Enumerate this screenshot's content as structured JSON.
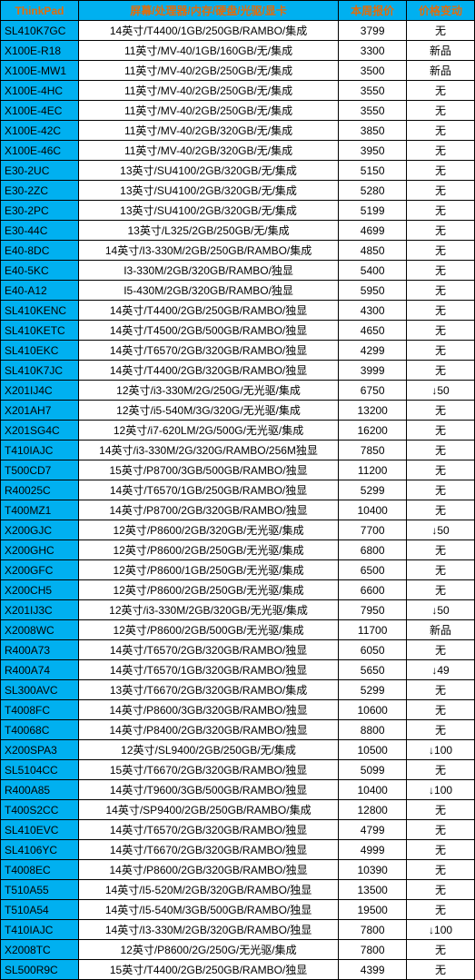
{
  "table": {
    "header_bg": "#00b0f0",
    "header_fg": "#e46c0a",
    "model_bg": "#00b0f0",
    "border_color": "#000000",
    "columns": [
      "ThinkPad",
      "屏幕/处理器/内存/硬盘/光驱/显卡",
      "本周报价",
      "价格变动"
    ],
    "rows": [
      [
        "SL410K7GC",
        "14英寸/T4400/1GB/250GB/RAMBO/集成",
        "3799",
        "无"
      ],
      [
        "X100E-R18",
        "11英寸/MV-40/1GB/160GB/无/集成",
        "3300",
        "新品"
      ],
      [
        "X100E-MW1",
        "11英寸/MV-40/2GB/250GB/无/集成",
        "3500",
        "新品"
      ],
      [
        "X100E-4HC",
        "11英寸/MV-40/2GB/250GB/无/集成",
        "3550",
        "无"
      ],
      [
        "X100E-4EC",
        "11英寸/MV-40/2GB/250GB/无/集成",
        "3550",
        "无"
      ],
      [
        "X100E-42C",
        "11英寸/MV-40/2GB/320GB/无/集成",
        "3850",
        "无"
      ],
      [
        "X100E-46C",
        "11英寸/MV-40/2GB/320GB/无/集成",
        "3950",
        "无"
      ],
      [
        "E30-2UC",
        "13英寸/SU4100/2GB/320GB/无/集成",
        "5150",
        "无"
      ],
      [
        "E30-2ZC",
        "13英寸/SU4100/2GB/320GB/无/集成",
        "5280",
        "无"
      ],
      [
        "E30-2PC",
        "13英寸/SU4100/2GB/320GB/无/集成",
        "5199",
        "无"
      ],
      [
        "E30-44C",
        "13英寸/L325/2GB/250GB/无/集成",
        "4699",
        "无"
      ],
      [
        "E40-8DC",
        "14英寸/I3-330M/2GB/250GB/RAMBO/集成",
        "4850",
        "无"
      ],
      [
        "E40-5KC",
        "I3-330M/2GB/320GB/RAMBO/独显",
        "5400",
        "无"
      ],
      [
        "E40-A12",
        "I5-430M/2GB/320GB/RAMBO/独显",
        "5950",
        "无"
      ],
      [
        "SL410KENC",
        "14英寸/T4400/2GB/250GB/RAMBO/独显",
        "4300",
        "无"
      ],
      [
        "SL410KETC",
        "14英寸/T4500/2GB/500GB/RAMBO/独显",
        "4650",
        "无"
      ],
      [
        "SL410EKC",
        "14英寸/T6570/2GB/320GB/RAMBO/独显",
        "4299",
        "无"
      ],
      [
        "SL410K7JC",
        "14英寸/T4400/2GB/320GB/RAMBO/独显",
        "3999",
        "无"
      ],
      [
        "X201IJ4C",
        "12英寸/i3-330M/2G/250G/无光驱/集成",
        "6750",
        "↓50"
      ],
      [
        "X201AH7",
        "12英寸/i5-540M/3G/320G/无光驱/集成",
        "13200",
        "无"
      ],
      [
        "X201SG4C",
        "12英寸/i7-620LM/2G/500G/无光驱/集成",
        "16200",
        "无"
      ],
      [
        "T410IAJC",
        "14英寸/i3-330M/2G/320G/RAMBO/256M独显",
        "7850",
        "无"
      ],
      [
        "T500CD7",
        "15英寸/P8700/3GB/500GB/RAMBO/独显",
        "11200",
        "无"
      ],
      [
        "R40025C",
        "14英寸/T6570/1GB/250GB/RAMBO/独显",
        "5299",
        "无"
      ],
      [
        "T400MZ1",
        "14英寸/P8700/2GB/320GB/RAMBO/独显",
        "10400",
        "无"
      ],
      [
        "X200GJC",
        "12英寸/P8600/2GB/320GB/无光驱/集成",
        "7700",
        "↓50"
      ],
      [
        "X200GHC",
        "12英寸/P8600/2GB/250GB/无光驱/集成",
        "6800",
        "无"
      ],
      [
        "X200GFC",
        "12英寸/P8600/1GB/250GB/无光驱/集成",
        "6500",
        "无"
      ],
      [
        "X200CH5",
        "12英寸/P8600/2GB/250GB/无光驱/集成",
        "6600",
        "无"
      ],
      [
        "X201IJ3C",
        "12英寸/i3-330M/2GB/320GB/无光驱/集成",
        "7950",
        "↓50"
      ],
      [
        "X2008WC",
        "12英寸/P8600/2GB/500GB/无光驱/集成",
        "11700",
        "新品"
      ],
      [
        "R400A73",
        "14英寸/T6570/2GB/320GB/RAMBO/独显",
        "6050",
        "无"
      ],
      [
        "R400A74",
        "14英寸/T6570/1GB/320GB/RAMBO/独显",
        "5650",
        "↓49"
      ],
      [
        "SL300AVC",
        "13英寸/T6670/2GB/320GB/RAMBO/集成",
        "5299",
        "无"
      ],
      [
        "T4008FC",
        "14英寸/P8600/3GB/320GB/RAMBO/独显",
        "10600",
        "无"
      ],
      [
        "T40068C",
        "14英寸/P8400/2GB/320GB/RAMBO/独显",
        "8800",
        "无"
      ],
      [
        "X200SPA3",
        "12英寸/SL9400/2GB/250GB/无/集成",
        "10500",
        "↓100"
      ],
      [
        "SL5104CC",
        "15英寸/T6670/2GB/320GB/RAMBO/独显",
        "5099",
        "无"
      ],
      [
        "R400A85",
        "14英寸/T9600/3GB/500GB/RAMBO/独显",
        "10400",
        "↓100"
      ],
      [
        "T400S2CC",
        "14英寸/SP9400/2GB/250GB/RAMBO/集成",
        "12800",
        "无"
      ],
      [
        "SL410EVC",
        "14英寸/T6570/2GB/320GB/RAMBO/独显",
        "4799",
        "无"
      ],
      [
        "SL4106YC",
        "14英寸/T6670/2GB/320GB/RAMBO/独显",
        "4999",
        "无"
      ],
      [
        "T4008EC",
        "14英寸/P8600/2GB/320GB/RAMBO/独显",
        "10390",
        "无"
      ],
      [
        "T510A55",
        "14英寸/I5-520M/2GB/320GB/RAMBO/独显",
        "13500",
        "无"
      ],
      [
        "T510A54",
        "14英寸/I5-540M/3GB/500GB/RAMBO/独显",
        "19500",
        "无"
      ],
      [
        "T410IAJC",
        "14英寸/I3-330M/2GB/320GB/RAMBO/独显",
        "7800",
        "↓100"
      ],
      [
        "X2008TC",
        "12英寸/P8600/2G/250G/无光驱/集成",
        "7800",
        "无"
      ],
      [
        "SL500R9C",
        "15英寸/T4400/2GB/250GB/RAMBO/独显",
        "4399",
        "无"
      ]
    ]
  }
}
